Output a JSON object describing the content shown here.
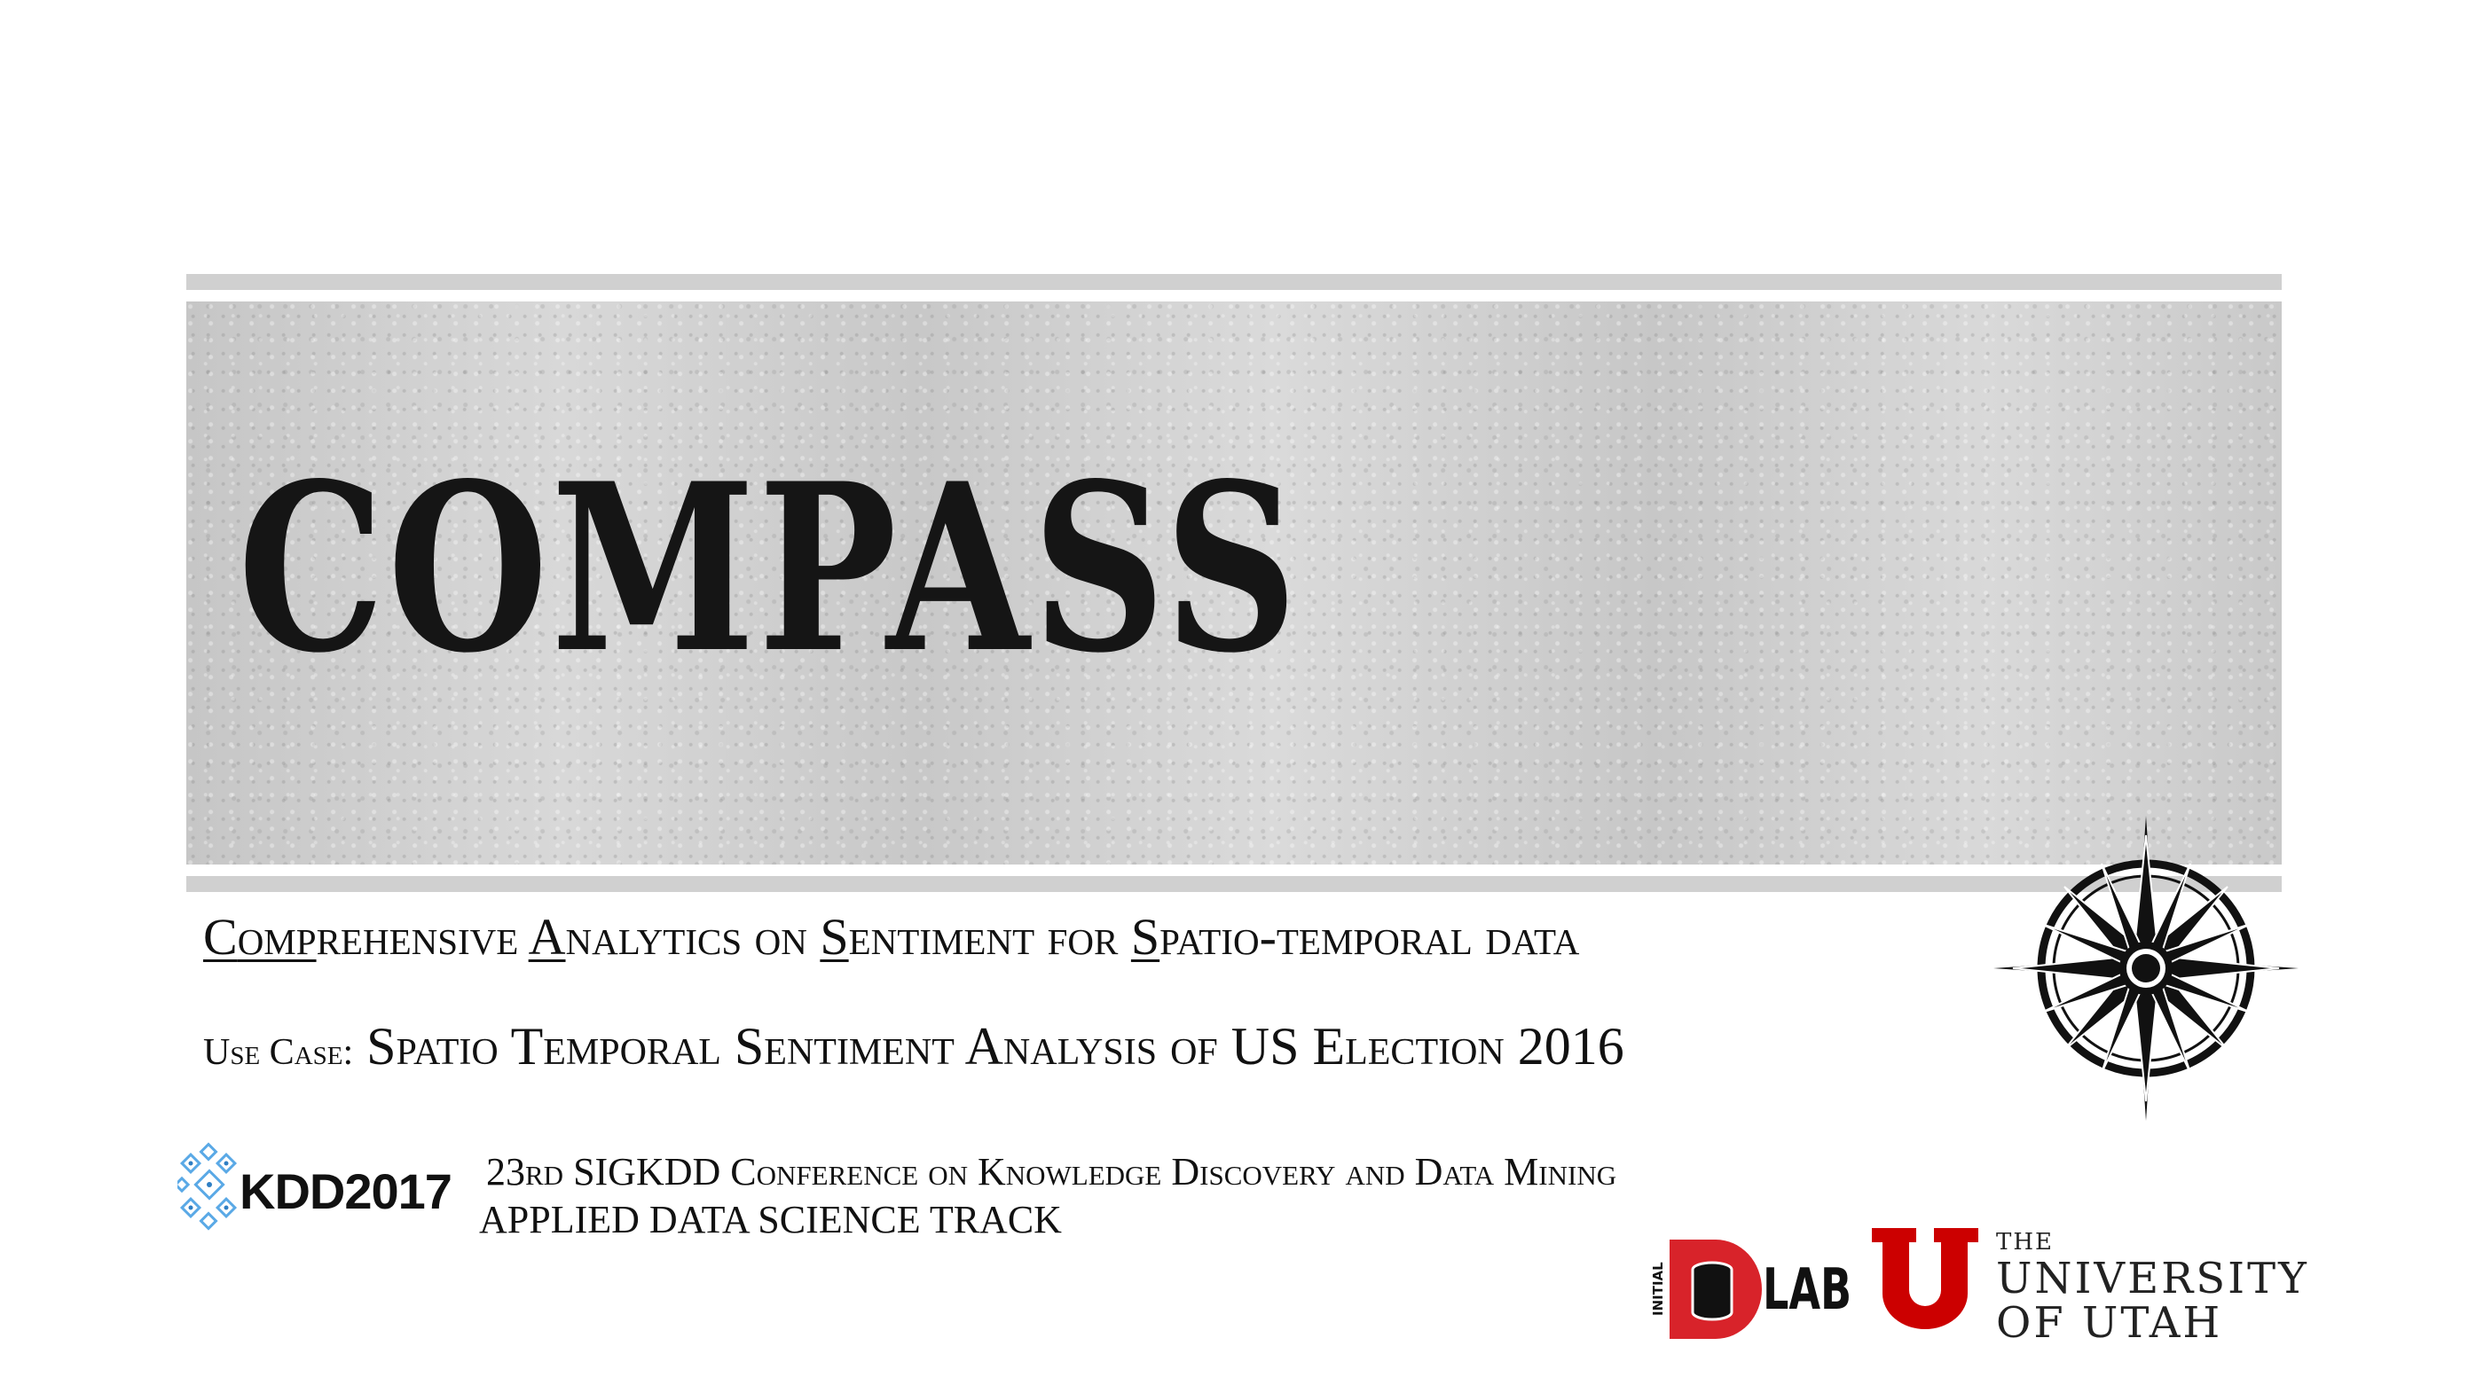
{
  "title": "COMPASS",
  "subtitle": {
    "w1_initial": "C",
    "w1_underlined_rest": "omp",
    "w1_tail": "rehensive ",
    "w2_initial": "A",
    "w2_rest": "nalytics on ",
    "w3_initial": "S",
    "w3_rest": "entiment for ",
    "w4_initial": "S",
    "w4_rest": "patio-temporal data"
  },
  "use_case": {
    "label": "Use Case:",
    "text": "Spatio Temporal Sentiment Analysis of US Election 2016"
  },
  "conference": {
    "line1": "23rd SIGKDD Conference on Knowledge Discovery and Data Mining",
    "line2": "APPLIED DATA SCIENCE TRACK"
  },
  "logos": {
    "kdd": "KDD2017",
    "dlab_initial": "INITIAL",
    "dlab_d": "D",
    "dlab_lab": "LAB",
    "utah_the": "THE",
    "utah_university": "UNIVERSITY",
    "utah_of": "OF UTAH"
  },
  "colors": {
    "hero_gray": "#cfcfcf",
    "utah_red": "#cc0000",
    "kdd_blue": "#5aa9e6",
    "ink": "#111111"
  },
  "icons": {
    "compass": "compass-rose-icon",
    "kdd": "snowflake-logo-icon",
    "dlab": "database-icon",
    "utah": "block-u-logo"
  }
}
